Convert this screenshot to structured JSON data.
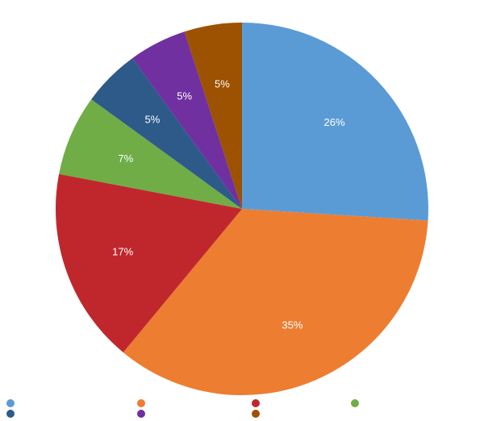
{
  "chart_data": {
    "type": "pie",
    "title": "",
    "start_angle": "12 o'clock",
    "direction": "clockwise",
    "slices": [
      {
        "value": 26,
        "label": "26%",
        "color": "#5b9bd5"
      },
      {
        "value": 35,
        "label": "35%",
        "color": "#ed7d31"
      },
      {
        "value": 17,
        "label": "17%",
        "color": "#c0272d"
      },
      {
        "value": 7,
        "label": "7%",
        "color": "#70ad47"
      },
      {
        "value": 5,
        "label": "5%",
        "color": "#2e5a8a"
      },
      {
        "value": 5,
        "label": "5%",
        "color": "#7030a0"
      },
      {
        "value": 5,
        "label": "5%",
        "color": "#9c5200"
      }
    ],
    "legend": {
      "placement": "bottom",
      "entries": [
        {
          "color": "#5b9bd5"
        },
        {
          "color": "#ed7d31"
        },
        {
          "color": "#c0272d"
        },
        {
          "color": "#70ad47"
        },
        {
          "color": "#2e5a8a"
        },
        {
          "color": "#7030a0"
        },
        {
          "color": "#9c5200"
        }
      ]
    }
  }
}
